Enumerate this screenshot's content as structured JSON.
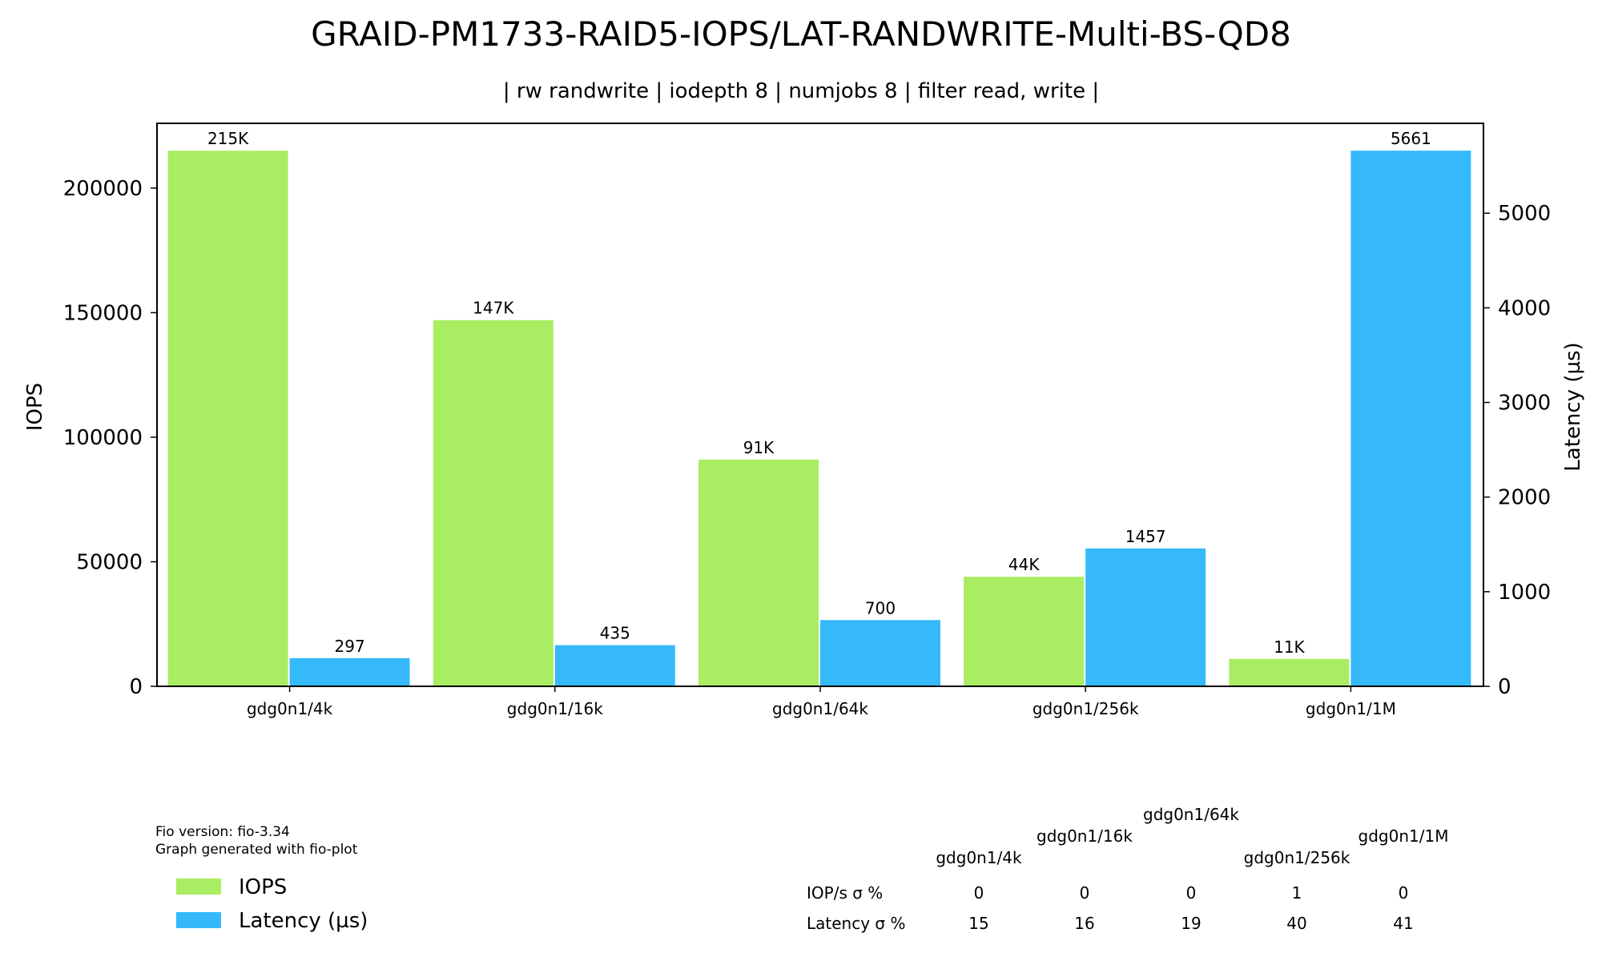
{
  "chart_data": {
    "type": "bar",
    "title": "GRAID-PM1733-RAID5-IOPS/LAT-RANDWRITE-Multi-BS-QD8",
    "subtitle": "| rw randwrite | iodepth 8 | numjobs 8 | filter read, write |",
    "categories": [
      "gdg0n1/4k",
      "gdg0n1/16k",
      "gdg0n1/64k",
      "gdg0n1/256k",
      "gdg0n1/1M"
    ],
    "series": [
      {
        "name": "IOPS",
        "axis": "left",
        "color": "#a9ed62",
        "values": [
          215000,
          147000,
          91000,
          44000,
          11000
        ],
        "labels": [
          "215K",
          "147K",
          "91K",
          "44K",
          "11K"
        ]
      },
      {
        "name": "Latency (µs)",
        "axis": "right",
        "color": "#35b9fa",
        "values": [
          297,
          435,
          700,
          1457,
          5661
        ],
        "labels": [
          "297",
          "435",
          "700",
          "1457",
          "5661"
        ]
      }
    ],
    "ylabel": "IOPS",
    "y2label": "Latency (µs)",
    "ylim": [
      0,
      226000
    ],
    "y2lim": [
      0,
      5950
    ],
    "yticks": [
      0,
      50000,
      100000,
      150000,
      200000
    ],
    "y2ticks": [
      0,
      1000,
      2000,
      3000,
      4000,
      5000
    ],
    "legend_position": "bottom-left",
    "grid": false
  },
  "footnote": {
    "line1": "Fio version: fio-3.34",
    "line2": "Graph generated with fio-plot"
  },
  "stats_table": {
    "headers": [
      "gdg0n1/4k",
      "gdg0n1/16k",
      "gdg0n1/64k",
      "gdg0n1/256k",
      "gdg0n1/1M"
    ],
    "rows": [
      {
        "label": "IOP/s σ %",
        "values": [
          "0",
          "0",
          "0",
          "1",
          "0"
        ]
      },
      {
        "label": "Latency σ %",
        "values": [
          "15",
          "16",
          "19",
          "40",
          "41"
        ]
      }
    ]
  }
}
